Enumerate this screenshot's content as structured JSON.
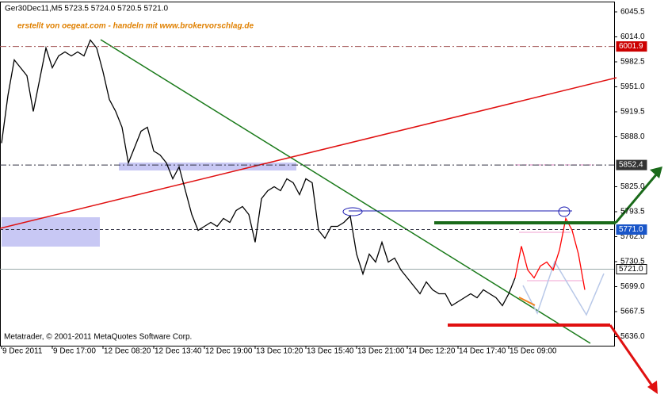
{
  "chart_data": {
    "type": "line",
    "title": "Ger30Dec11,M5  5723.5 5724.0 5720.5 5721.0",
    "subtitle": "erstellt von oegeat.com - handeln mit www.brokervorschlag.de",
    "footer": "Metatrader, © 2001-2011 MetaQuotes Software Corp.",
    "categories": [
      "9 Dec 2011",
      null,
      null,
      null,
      null,
      null,
      null,
      null,
      "9 Dec 17:00",
      null,
      null,
      null,
      null,
      null,
      null,
      null,
      "12 Dec 08:20",
      null,
      null,
      null,
      null,
      null,
      null,
      null,
      "12 Dec 13:40",
      null,
      null,
      null,
      null,
      null,
      null,
      null,
      "12 Dec 19:00",
      null,
      null,
      null,
      null,
      null,
      null,
      null,
      "13 Dec 10:20",
      null,
      null,
      null,
      null,
      null,
      null,
      null,
      "13 Dec 15:40",
      null,
      null,
      null,
      null,
      null,
      null,
      null,
      "13 Dec 21:00",
      null,
      null,
      null,
      null,
      null,
      null,
      null,
      "14 Dec 12:20",
      null,
      null,
      null,
      null,
      null,
      null,
      null,
      "14 Dec 17:40",
      null,
      null,
      null,
      null,
      null,
      null,
      null,
      "15 Dec 09:00",
      null,
      null,
      null,
      null,
      null,
      null,
      null,
      null,
      null,
      null,
      null,
      null
    ],
    "series": [
      {
        "color": "#000000",
        "values": [
          5880,
          5940,
          5985,
          5975,
          5965,
          5920,
          5960,
          6000,
          5975,
          5990,
          5995,
          5990,
          5995,
          5990,
          6010,
          6000,
          5970,
          5935,
          5920,
          5900,
          5855,
          5875,
          5895,
          5900,
          5870,
          5865,
          5855,
          5835,
          5850,
          5820,
          5790,
          5770,
          5775,
          5780,
          5775,
          5785,
          5780,
          5795,
          5800,
          5790,
          5755,
          5810,
          5820,
          5825,
          5820,
          5835,
          5830,
          5815,
          5835,
          5830,
          5770,
          5760,
          5775,
          5775,
          5780,
          5788,
          5740,
          5715,
          5740,
          5730,
          5755,
          5730,
          5735,
          5720,
          5710,
          5700,
          5690,
          5705,
          5695,
          5690,
          5690,
          5675,
          5680,
          5685,
          5690,
          5685,
          5695,
          5690,
          5685,
          5675,
          5690,
          5710,
          null,
          null,
          null,
          null,
          null,
          null,
          null,
          null,
          null,
          null,
          null
        ]
      },
      {
        "color": "#ff0000",
        "values": [
          null,
          null,
          null,
          null,
          null,
          null,
          null,
          null,
          null,
          null,
          null,
          null,
          null,
          null,
          null,
          null,
          null,
          null,
          null,
          null,
          null,
          null,
          null,
          null,
          null,
          null,
          null,
          null,
          null,
          null,
          null,
          null,
          null,
          null,
          null,
          null,
          null,
          null,
          null,
          null,
          null,
          null,
          null,
          null,
          null,
          null,
          null,
          null,
          null,
          null,
          null,
          null,
          null,
          null,
          null,
          null,
          null,
          null,
          null,
          null,
          null,
          null,
          null,
          null,
          null,
          null,
          null,
          null,
          null,
          null,
          null,
          null,
          null,
          null,
          null,
          null,
          null,
          null,
          null,
          null,
          null,
          5710,
          5750,
          5720,
          5710,
          5725,
          5730,
          5720,
          5745,
          5785,
          5770,
          5740,
          5695
        ]
      }
    ],
    "ylim": [
      5624.5,
      6058.5
    ],
    "yticks": [
      6045.5,
      {
        "value": 6014.0,
        "label": "6014.0"
      },
      5982.5,
      {
        "value": 5951.0,
        "label": "5951.0"
      },
      5919.5,
      {
        "value": 5888.0,
        "label": "5888.0"
      },
      {
        "value": 5825.0,
        "label": "5825.0"
      },
      5793.5,
      {
        "value": 5762.0,
        "label": "5762.0"
      },
      5730.5,
      {
        "value": 5699.0,
        "label": "5699.0"
      },
      5667.5,
      {
        "value": 5636.0,
        "label": "5636.0"
      }
    ],
    "price_lines": [
      {
        "value": 6001.9,
        "color": "#cc0000"
      },
      {
        "value": 5852.4,
        "color": "#333333"
      },
      {
        "value": {
          "value": 5771.0,
          "label": "5771.0"
        },
        "color": "#1a56c8"
      },
      {
        "value": {
          "value": 5721.0,
          "label": "5721.0"
        },
        "color": "#888888"
      }
    ]
  }
}
